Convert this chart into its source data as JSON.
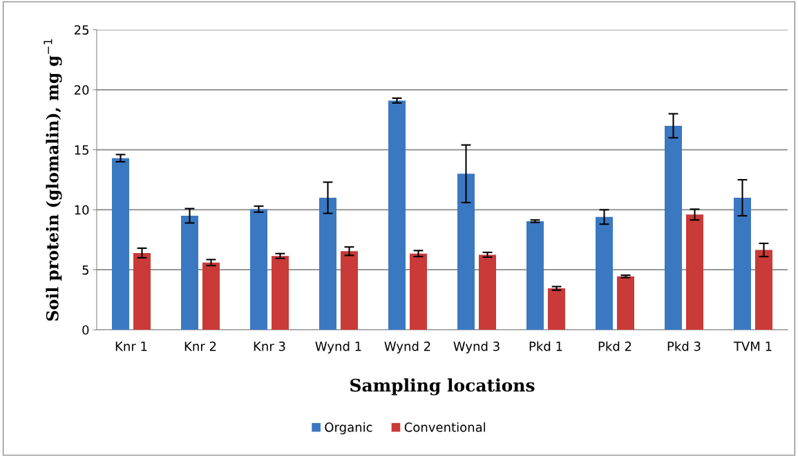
{
  "chart_data": {
    "type": "bar",
    "xlabel": "Sampling locations",
    "ylabel": "Soil protein (glomalin), mg g$^{−1}$",
    "categories": [
      "Knr 1",
      "Knr 2",
      "Knr 3",
      "Wynd 1",
      "Wynd 2",
      "Wynd 3",
      "Pkd 1",
      "Pkd 2",
      "Pkd 3",
      "TVM 1"
    ],
    "series": [
      {
        "name": "Organic",
        "color": "#3a78c2",
        "values": [
          14.3,
          9.5,
          10.05,
          11,
          19.1,
          13,
          9.05,
          9.4,
          17,
          11
        ],
        "errors": [
          0.3,
          0.6,
          0.25,
          1.3,
          0.2,
          2.4,
          0.1,
          0.6,
          1.0,
          1.5
        ]
      },
      {
        "name": "Conventional",
        "color": "#c93a38",
        "values": [
          6.4,
          5.6,
          6.15,
          6.55,
          6.35,
          6.25,
          3.45,
          4.45,
          9.6,
          6.65
        ],
        "errors": [
          0.4,
          0.25,
          0.2,
          0.35,
          0.25,
          0.2,
          0.15,
          0.1,
          0.45,
          0.55
        ]
      }
    ],
    "ylim": [
      0,
      25
    ],
    "yticks": [
      0,
      5,
      10,
      15,
      20,
      25
    ],
    "grid": "y",
    "legend": "bottom"
  }
}
